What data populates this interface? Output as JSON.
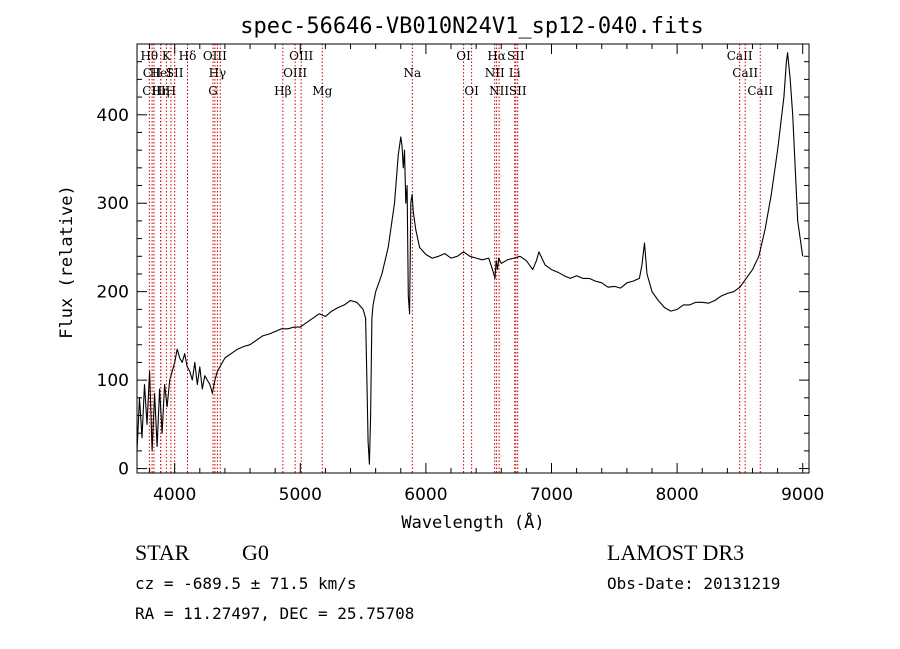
{
  "chart_data": {
    "type": "line",
    "title": "spec-56646-VB010N24V1_sp12-040.fits",
    "xlabel": "Wavelength (Å)",
    "ylabel": "Flux (relative)",
    "xlim": [
      3700,
      9050
    ],
    "ylim": [
      -5,
      480
    ],
    "xticks": [
      4000,
      5000,
      6000,
      7000,
      8000,
      9000
    ],
    "yticks": [
      0,
      100,
      200,
      300,
      400
    ],
    "series": [
      {
        "x": [
          3700,
          3720,
          3740,
          3760,
          3780,
          3800,
          3820,
          3840,
          3860,
          3880,
          3900,
          3920,
          3940,
          3960,
          3980,
          4000,
          4020,
          4040,
          4060,
          4080,
          4100,
          4120,
          4140,
          4160,
          4180,
          4200,
          4220,
          4240,
          4260,
          4280,
          4300,
          4320,
          4340,
          4360,
          4380,
          4400,
          4450,
          4500,
          4550,
          4600,
          4650,
          4700,
          4750,
          4800,
          4850,
          4900,
          4950,
          5000,
          5050,
          5100,
          5150,
          5200,
          5250,
          5300,
          5350,
          5400,
          5450,
          5500,
          5520,
          5530,
          5540,
          5550,
          5560,
          5570,
          5580,
          5600,
          5650,
          5700,
          5750,
          5780,
          5800,
          5810,
          5820,
          5830,
          5840,
          5850,
          5860,
          5870,
          5880,
          5890,
          5900,
          5920,
          5950,
          6000,
          6050,
          6100,
          6150,
          6200,
          6250,
          6300,
          6350,
          6400,
          6450,
          6500,
          6530,
          6550,
          6560,
          6570,
          6580,
          6600,
          6650,
          6700,
          6750,
          6800,
          6850,
          6880,
          6900,
          6950,
          7000,
          7050,
          7100,
          7150,
          7200,
          7250,
          7300,
          7350,
          7400,
          7450,
          7500,
          7550,
          7600,
          7650,
          7700,
          7720,
          7740,
          7760,
          7800,
          7850,
          7900,
          7950,
          8000,
          8050,
          8100,
          8150,
          8200,
          8250,
          8300,
          8350,
          8400,
          8450,
          8500,
          8550,
          8600,
          8650,
          8700,
          8750,
          8800,
          8850,
          8870,
          8880,
          8900,
          8920,
          8940,
          8960,
          8980,
          9000
        ],
        "y": [
          20,
          80,
          35,
          95,
          50,
          110,
          20,
          85,
          25,
          90,
          40,
          95,
          70,
          100,
          110,
          120,
          135,
          125,
          120,
          130,
          115,
          110,
          100,
          120,
          95,
          115,
          90,
          105,
          100,
          95,
          85,
          100,
          110,
          115,
          120,
          125,
          130,
          135,
          138,
          140,
          145,
          150,
          152,
          155,
          158,
          158,
          160,
          160,
          165,
          170,
          175,
          172,
          178,
          182,
          185,
          190,
          188,
          180,
          170,
          100,
          30,
          5,
          60,
          170,
          185,
          200,
          220,
          250,
          300,
          355,
          375,
          365,
          340,
          360,
          300,
          320,
          195,
          175,
          300,
          310,
          290,
          270,
          250,
          242,
          238,
          240,
          243,
          238,
          240,
          245,
          240,
          238,
          236,
          238,
          225,
          215,
          235,
          225,
          238,
          232,
          236,
          238,
          240,
          235,
          225,
          235,
          245,
          230,
          225,
          222,
          218,
          215,
          218,
          215,
          215,
          212,
          210,
          205,
          206,
          204,
          210,
          212,
          215,
          230,
          255,
          220,
          200,
          190,
          182,
          178,
          180,
          185,
          185,
          188,
          188,
          187,
          190,
          195,
          198,
          200,
          205,
          215,
          225,
          240,
          270,
          310,
          360,
          420,
          460,
          470,
          440,
          400,
          340,
          280,
          260,
          240
        ]
      }
    ],
    "line_markers": [
      {
        "wl": 3798,
        "label": "Hθ",
        "row": 0
      },
      {
        "wl": 3820,
        "label": "CII",
        "row": 1
      },
      {
        "wl": 3835,
        "label": "CIII",
        "row": 2
      },
      {
        "wl": 3889,
        "label": "HeI",
        "row": 1
      },
      {
        "wl": 3889,
        "label": "Hη",
        "row": 2
      },
      {
        "wl": 3934,
        "label": "K",
        "row": 0
      },
      {
        "wl": 3970,
        "label": "H",
        "row": 2
      },
      {
        "wl": 4000,
        "label": "SII",
        "row": 1
      },
      {
        "wl": 4102,
        "label": "Hδ",
        "row": 0
      },
      {
        "wl": 4305,
        "label": "G",
        "row": 2
      },
      {
        "wl": 4320,
        "label": "OIII",
        "row": 0
      },
      {
        "wl": 4340,
        "label": "Hγ",
        "row": 1
      },
      {
        "wl": 4363,
        "label": "",
        "row": 0
      },
      {
        "wl": 4861,
        "label": "Hβ",
        "row": 2
      },
      {
        "wl": 4959,
        "label": "OIII",
        "row": 1
      },
      {
        "wl": 5007,
        "label": "OIII",
        "row": 0
      },
      {
        "wl": 5175,
        "label": "Mg",
        "row": 2
      },
      {
        "wl": 5892,
        "label": "Na",
        "row": 1
      },
      {
        "wl": 6300,
        "label": "OI",
        "row": 0
      },
      {
        "wl": 6364,
        "label": "OI",
        "row": 2
      },
      {
        "wl": 6548,
        "label": "NII",
        "row": 1
      },
      {
        "wl": 6563,
        "label": "Hα",
        "row": 0
      },
      {
        "wl": 6583,
        "label": "NII",
        "row": 2
      },
      {
        "wl": 6707,
        "label": "Li",
        "row": 1
      },
      {
        "wl": 6716,
        "label": "SII",
        "row": 0
      },
      {
        "wl": 6731,
        "label": "SII",
        "row": 2
      },
      {
        "wl": 8498,
        "label": "CaII",
        "row": 0
      },
      {
        "wl": 8542,
        "label": "CaII",
        "row": 1
      },
      {
        "wl": 8662,
        "label": "CaII",
        "row": 2
      }
    ]
  },
  "info": {
    "class": "STAR",
    "subclass": "G0",
    "survey": "LAMOST DR3",
    "cz": "cz = -689.5 ± 71.5 km/s",
    "obsdate": "Obs-Date: 20131219",
    "radec": "RA =  11.27497, DEC =  25.75708"
  },
  "colors": {
    "line": "#000000",
    "marker": "#cc0000"
  }
}
